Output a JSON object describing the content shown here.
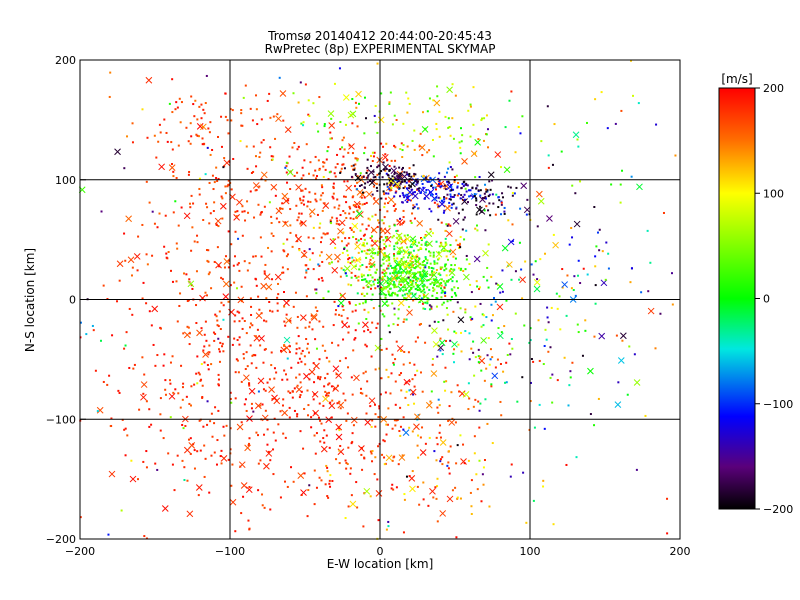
{
  "chart_data": {
    "type": "scatter",
    "title": "Tromsø 20140412 20:44:00-20:45:43",
    "subtitle": "RwPretec (8p) EXPERIMENTAL SKYMAP",
    "xlabel": "E-W location [km]",
    "ylabel": "N-S location [km]",
    "xlim": [
      -200,
      200
    ],
    "ylim": [
      -200,
      200
    ],
    "xticks": [
      -200,
      -100,
      0,
      100,
      200
    ],
    "yticks": [
      -200,
      -100,
      0,
      100,
      200
    ],
    "xtick_labels": [
      "−200",
      "−100",
      "0",
      "100",
      "200"
    ],
    "ytick_labels": [
      "−200",
      "−100",
      "0",
      "100",
      "200"
    ],
    "grid": true,
    "colorbar": {
      "label": "[m/s]",
      "range": [
        -200,
        200
      ],
      "ticks": [
        200,
        100,
        0,
        -100,
        -200
      ],
      "tick_labels": [
        "200",
        "100",
        "0",
        "−100",
        "−200"
      ],
      "colormap": "black-purple-blue-cyan-green-yellow-orange-red",
      "placement": "right"
    },
    "marker_types": [
      "dot",
      "cross"
    ],
    "clusters": [
      {
        "cx": -60,
        "cy": 100,
        "sx": 50,
        "sy": 30,
        "n": 220,
        "vmin": 150,
        "vmax": 200
      },
      {
        "cx": -10,
        "cy": 70,
        "sx": 30,
        "sy": 30,
        "n": 260,
        "vmin": 140,
        "vmax": 200
      },
      {
        "cx": -120,
        "cy": -80,
        "sx": 40,
        "sy": 55,
        "n": 240,
        "vmin": 160,
        "vmax": 200
      },
      {
        "cx": -30,
        "cy": -90,
        "sx": 40,
        "sy": 50,
        "n": 320,
        "vmin": 160,
        "vmax": 200
      },
      {
        "cx": -70,
        "cy": -20,
        "sx": 50,
        "sy": 40,
        "n": 150,
        "vmin": 150,
        "vmax": 200
      },
      {
        "cx": -100,
        "cy": 40,
        "sx": 45,
        "sy": 35,
        "n": 150,
        "vmin": 150,
        "vmax": 200
      },
      {
        "cx": -120,
        "cy": 150,
        "sx": 20,
        "sy": 15,
        "n": 60,
        "vmin": 140,
        "vmax": 200
      },
      {
        "cx": 20,
        "cy": 20,
        "sx": 18,
        "sy": 15,
        "n": 450,
        "vmin": -20,
        "vmax": 60
      },
      {
        "cx": 10,
        "cy": 35,
        "sx": 25,
        "sy": 15,
        "n": 140,
        "vmin": 40,
        "vmax": 130
      },
      {
        "cx": 40,
        "cy": 90,
        "sx": 18,
        "sy": 8,
        "n": 140,
        "vmin": -130,
        "vmax": -60
      },
      {
        "cx": 5,
        "cy": 102,
        "sx": 12,
        "sy": 6,
        "n": 110,
        "vmin": -200,
        "vmax": -160
      },
      {
        "cx": 65,
        "cy": 85,
        "sx": 15,
        "sy": 10,
        "n": 70,
        "vmin": -200,
        "vmax": -160
      },
      {
        "cx": 20,
        "cy": 140,
        "sx": 45,
        "sy": 25,
        "n": 130,
        "vmin": 0,
        "vmax": 150
      },
      {
        "cx": 70,
        "cy": -30,
        "sx": 35,
        "sy": 50,
        "n": 200,
        "vmin": -200,
        "vmax": 200
      },
      {
        "cx": 20,
        "cy": -130,
        "sx": 40,
        "sy": 40,
        "n": 150,
        "vmin": 100,
        "vmax": 200
      },
      {
        "cx": 120,
        "cy": 40,
        "sx": 40,
        "sy": 60,
        "n": 120,
        "vmin": -200,
        "vmax": 200
      },
      {
        "cx": 0,
        "cy": 0,
        "sx": 150,
        "sy": 150,
        "n": 250,
        "vmin": -200,
        "vmax": 200
      }
    ]
  }
}
